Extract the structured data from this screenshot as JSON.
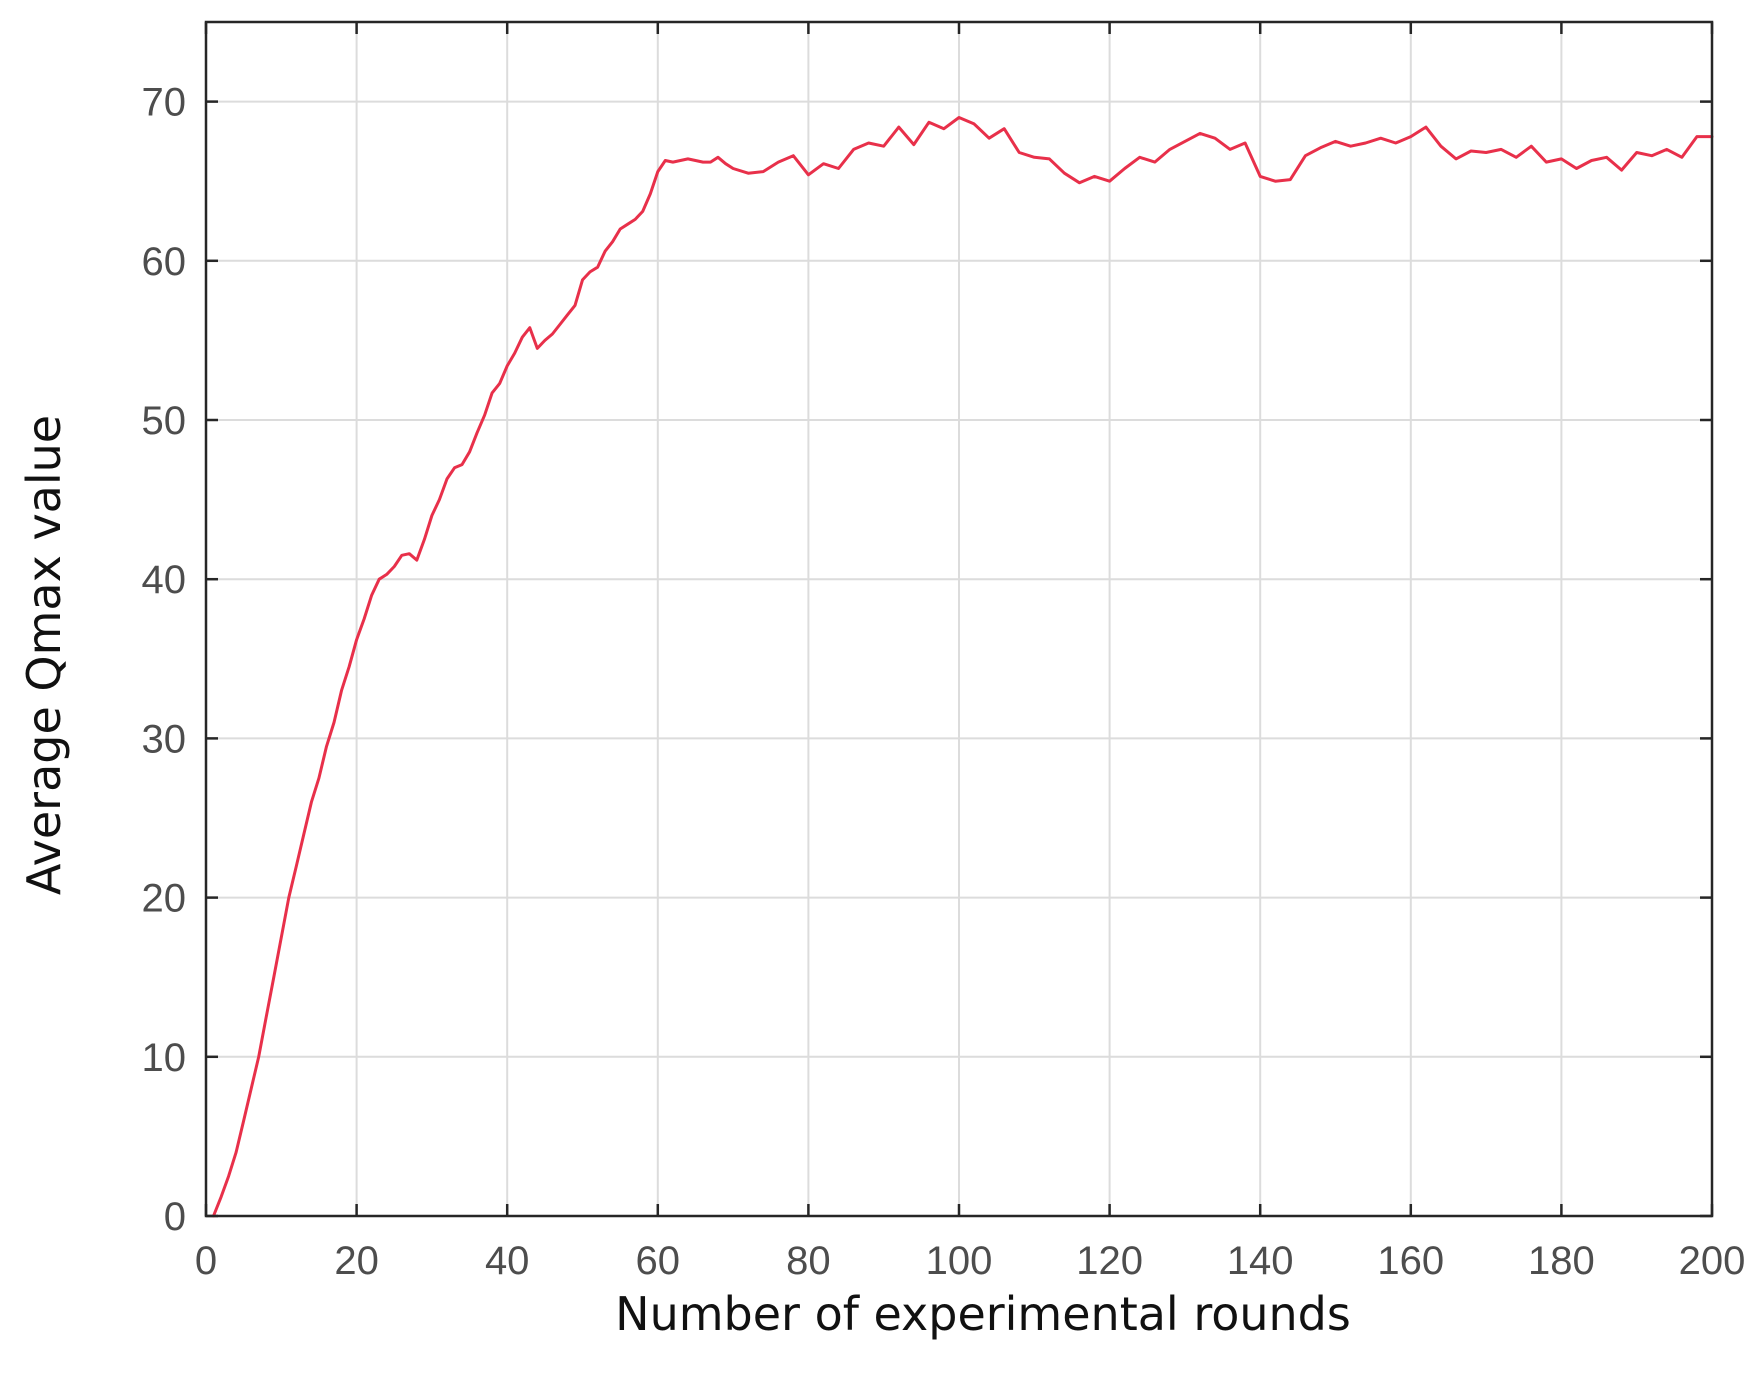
{
  "chart_data": {
    "type": "line",
    "title": "",
    "xlabel": "Number of experimental rounds",
    "ylabel": "Average Qmax value",
    "xlim": [
      0,
      200
    ],
    "ylim": [
      0,
      75
    ],
    "x_ticks": [
      0,
      20,
      40,
      60,
      80,
      100,
      120,
      140,
      160,
      180,
      200
    ],
    "y_ticks": [
      0,
      10,
      20,
      30,
      40,
      50,
      60,
      70
    ],
    "x_tick_labels": [
      "0",
      "20",
      "40",
      "60",
      "80",
      "100",
      "120",
      "140",
      "160",
      "180",
      "200"
    ],
    "y_tick_labels": [
      "0",
      "10",
      "20",
      "30",
      "40",
      "50",
      "60",
      "70"
    ],
    "grid": true,
    "legend": "none",
    "series": [
      {
        "color": "#e8304a",
        "x": [
          1,
          2,
          3,
          4,
          5,
          6,
          7,
          8,
          9,
          10,
          11,
          12,
          13,
          14,
          15,
          16,
          17,
          18,
          19,
          20,
          21,
          22,
          23,
          24,
          25,
          26,
          27,
          28,
          29,
          30,
          31,
          32,
          33,
          34,
          35,
          36,
          37,
          38,
          39,
          40,
          41,
          42,
          43,
          44,
          45,
          46,
          47,
          48,
          49,
          50,
          51,
          52,
          53,
          54,
          55,
          56,
          57,
          58,
          59,
          60,
          61,
          62,
          63,
          64,
          65,
          66,
          67,
          68,
          69,
          70,
          72,
          74,
          76,
          78,
          80,
          82,
          84,
          86,
          88,
          90,
          92,
          94,
          96,
          98,
          100,
          102,
          104,
          106,
          108,
          110,
          112,
          114,
          116,
          118,
          120,
          122,
          124,
          126,
          128,
          130,
          132,
          134,
          136,
          138,
          140,
          142,
          144,
          146,
          148,
          150,
          152,
          154,
          156,
          158,
          160,
          162,
          164,
          166,
          168,
          170,
          172,
          174,
          176,
          178,
          180,
          182,
          184,
          186,
          188,
          190,
          192,
          194,
          196,
          198,
          200
        ],
        "values": [
          0,
          1.2,
          2.5,
          4,
          6,
          8,
          10,
          12.5,
          15,
          17.5,
          20,
          22,
          24,
          26,
          27.5,
          29.5,
          31,
          33,
          34.5,
          36.2,
          37.5,
          39,
          40,
          40.3,
          40.8,
          41.5,
          41.6,
          41.2,
          42.5,
          44,
          45,
          46.3,
          47,
          47.2,
          48,
          49.2,
          50.3,
          51.7,
          52.3,
          53.4,
          54.2,
          55.2,
          55.8,
          54.5,
          55,
          55.4,
          56,
          56.6,
          57.2,
          58.8,
          59.3,
          59.6,
          60.6,
          61.2,
          62,
          62.3,
          62.6,
          63.1,
          64.2,
          65.6,
          66.3,
          66.2,
          66.3,
          66.4,
          66.3,
          66.2,
          66.2,
          66.5,
          66.1,
          65.8,
          65.5,
          65.6,
          66.2,
          66.6,
          65.4,
          66.1,
          65.8,
          67.0,
          67.4,
          67.2,
          68.4,
          67.3,
          68.7,
          68.3,
          69.0,
          68.6,
          67.7,
          68.3,
          66.8,
          66.5,
          66.4,
          65.5,
          64.9,
          65.3,
          65.0,
          65.8,
          66.5,
          66.2,
          67.0,
          67.5,
          68.0,
          67.7,
          67.0,
          67.4,
          65.3,
          65.0,
          65.1,
          66.6,
          67.1,
          67.5,
          67.2,
          67.4,
          67.7,
          67.4,
          67.8,
          68.4,
          67.2,
          66.4,
          66.9,
          66.8,
          67.0,
          66.5,
          67.2,
          66.2,
          66.4,
          65.8,
          66.3,
          66.5,
          65.7,
          66.8,
          66.6,
          67.0,
          66.5,
          67.8,
          67.8
        ]
      }
    ]
  }
}
